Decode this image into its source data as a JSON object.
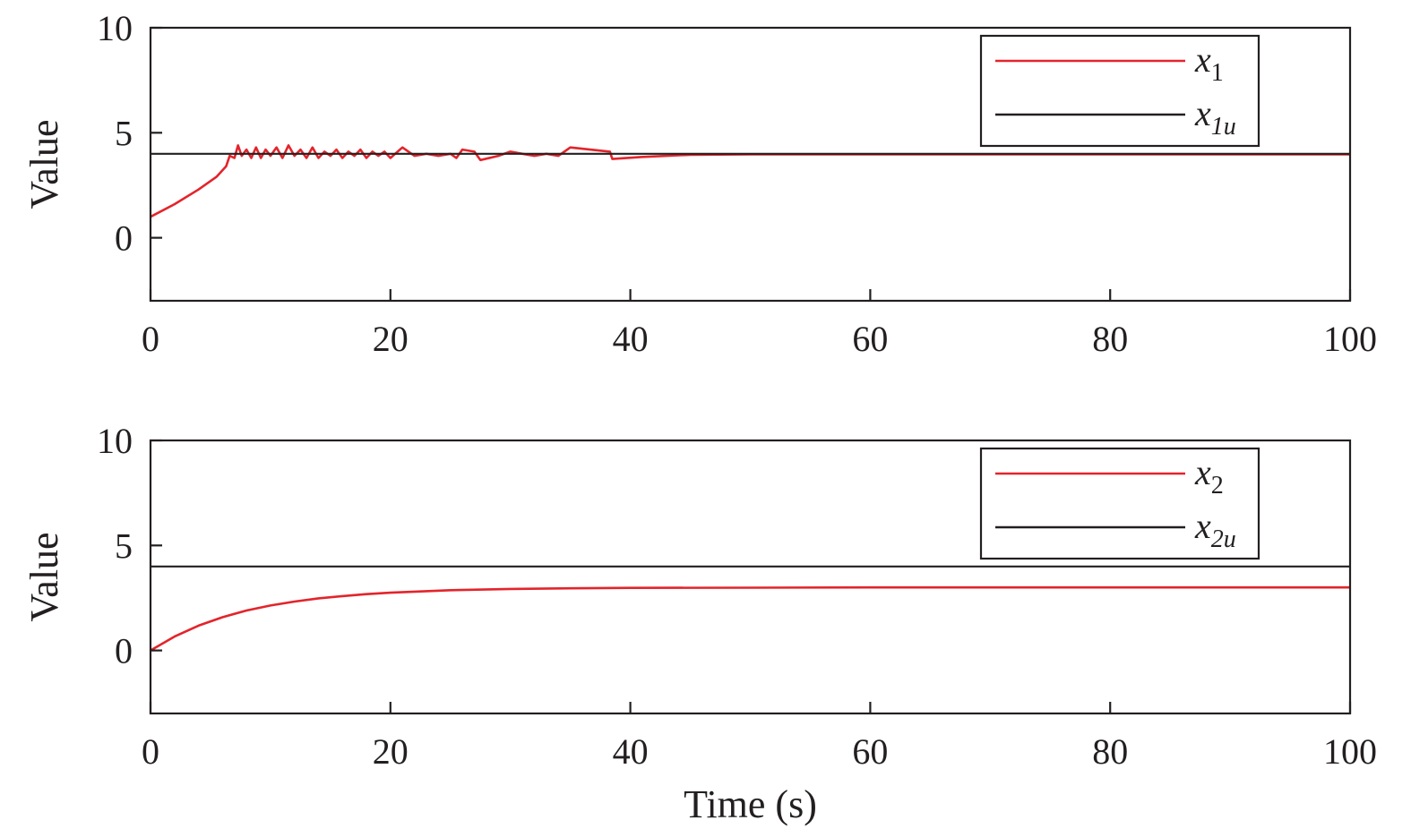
{
  "chart_data": [
    {
      "type": "line",
      "xlabel": "",
      "ylabel": "Value",
      "xlim": [
        0,
        100
      ],
      "ylim": [
        -3,
        10
      ],
      "xticks": [
        "0",
        "20",
        "40",
        "60",
        "80",
        "100"
      ],
      "yticks": [
        "0",
        "5",
        "10"
      ],
      "legend_position": "top-right",
      "grid": false,
      "series": [
        {
          "name": "x1",
          "name_base": "x",
          "name_sub": "1",
          "color": "#e3242b",
          "points": [
            [
              0,
              1
            ],
            [
              2,
              1.6
            ],
            [
              4,
              2.3
            ],
            [
              5.5,
              2.9
            ],
            [
              6.3,
              3.4
            ],
            [
              6.6,
              3.9
            ],
            [
              7,
              3.8
            ],
            [
              7.3,
              4.4
            ],
            [
              7.6,
              3.9
            ],
            [
              8,
              4.2
            ],
            [
              8.4,
              3.8
            ],
            [
              8.8,
              4.3
            ],
            [
              9.2,
              3.8
            ],
            [
              9.6,
              4.2
            ],
            [
              10,
              3.9
            ],
            [
              10.5,
              4.3
            ],
            [
              11,
              3.8
            ],
            [
              11.5,
              4.4
            ],
            [
              12,
              3.9
            ],
            [
              12.5,
              4.2
            ],
            [
              13,
              3.8
            ],
            [
              13.5,
              4.3
            ],
            [
              14,
              3.8
            ],
            [
              14.5,
              4.1
            ],
            [
              15,
              3.9
            ],
            [
              15.5,
              4.2
            ],
            [
              16,
              3.8
            ],
            [
              16.5,
              4.1
            ],
            [
              17,
              3.9
            ],
            [
              17.5,
              4.2
            ],
            [
              18,
              3.8
            ],
            [
              18.5,
              4.1
            ],
            [
              19,
              3.9
            ],
            [
              19.5,
              4.1
            ],
            [
              20,
              3.8
            ],
            [
              21,
              4.3
            ],
            [
              22,
              3.9
            ],
            [
              23,
              4.0
            ],
            [
              24,
              3.9
            ],
            [
              25,
              4.0
            ],
            [
              25.5,
              3.8
            ],
            [
              26,
              4.2
            ],
            [
              27,
              4.1
            ],
            [
              27.5,
              3.7
            ],
            [
              29,
              3.9
            ],
            [
              30,
              4.1
            ],
            [
              31,
              4.0
            ],
            [
              32,
              3.9
            ],
            [
              33,
              4.0
            ],
            [
              34,
              3.9
            ],
            [
              35,
              4.3
            ],
            [
              38.3,
              4.1
            ],
            [
              38.5,
              3.75
            ],
            [
              41,
              3.85
            ],
            [
              45,
              3.95
            ],
            [
              50,
              3.97
            ],
            [
              100,
              3.97
            ]
          ]
        },
        {
          "name": "x1u",
          "name_base": "x",
          "name_sub": "1u",
          "color": "#231f20",
          "points": [
            [
              0,
              4
            ],
            [
              100,
              4
            ]
          ]
        }
      ]
    },
    {
      "type": "line",
      "xlabel": "Time (s)",
      "ylabel": "Value",
      "xlim": [
        0,
        100
      ],
      "ylim": [
        -3,
        10
      ],
      "xticks": [
        "0",
        "20",
        "40",
        "60",
        "80",
        "100"
      ],
      "yticks": [
        "0",
        "5",
        "10"
      ],
      "legend_position": "top-right",
      "grid": false,
      "series": [
        {
          "name": "x2",
          "name_base": "x",
          "name_sub": "2",
          "color": "#e3242b",
          "points": [
            [
              0,
              0
            ],
            [
              2,
              0.66
            ],
            [
              4,
              1.18
            ],
            [
              6,
              1.58
            ],
            [
              8,
              1.9
            ],
            [
              10,
              2.14
            ],
            [
              12,
              2.33
            ],
            [
              14,
              2.48
            ],
            [
              16,
              2.59
            ],
            [
              18,
              2.68
            ],
            [
              20,
              2.75
            ],
            [
              25,
              2.87
            ],
            [
              30,
              2.93
            ],
            [
              35,
              2.96
            ],
            [
              40,
              2.98
            ],
            [
              50,
              2.99
            ],
            [
              60,
              3.0
            ],
            [
              100,
              3.0
            ]
          ]
        },
        {
          "name": "x2u",
          "name_base": "x",
          "name_sub": "2u",
          "color": "#231f20",
          "points": [
            [
              0,
              4
            ],
            [
              100,
              4
            ]
          ]
        }
      ]
    }
  ]
}
